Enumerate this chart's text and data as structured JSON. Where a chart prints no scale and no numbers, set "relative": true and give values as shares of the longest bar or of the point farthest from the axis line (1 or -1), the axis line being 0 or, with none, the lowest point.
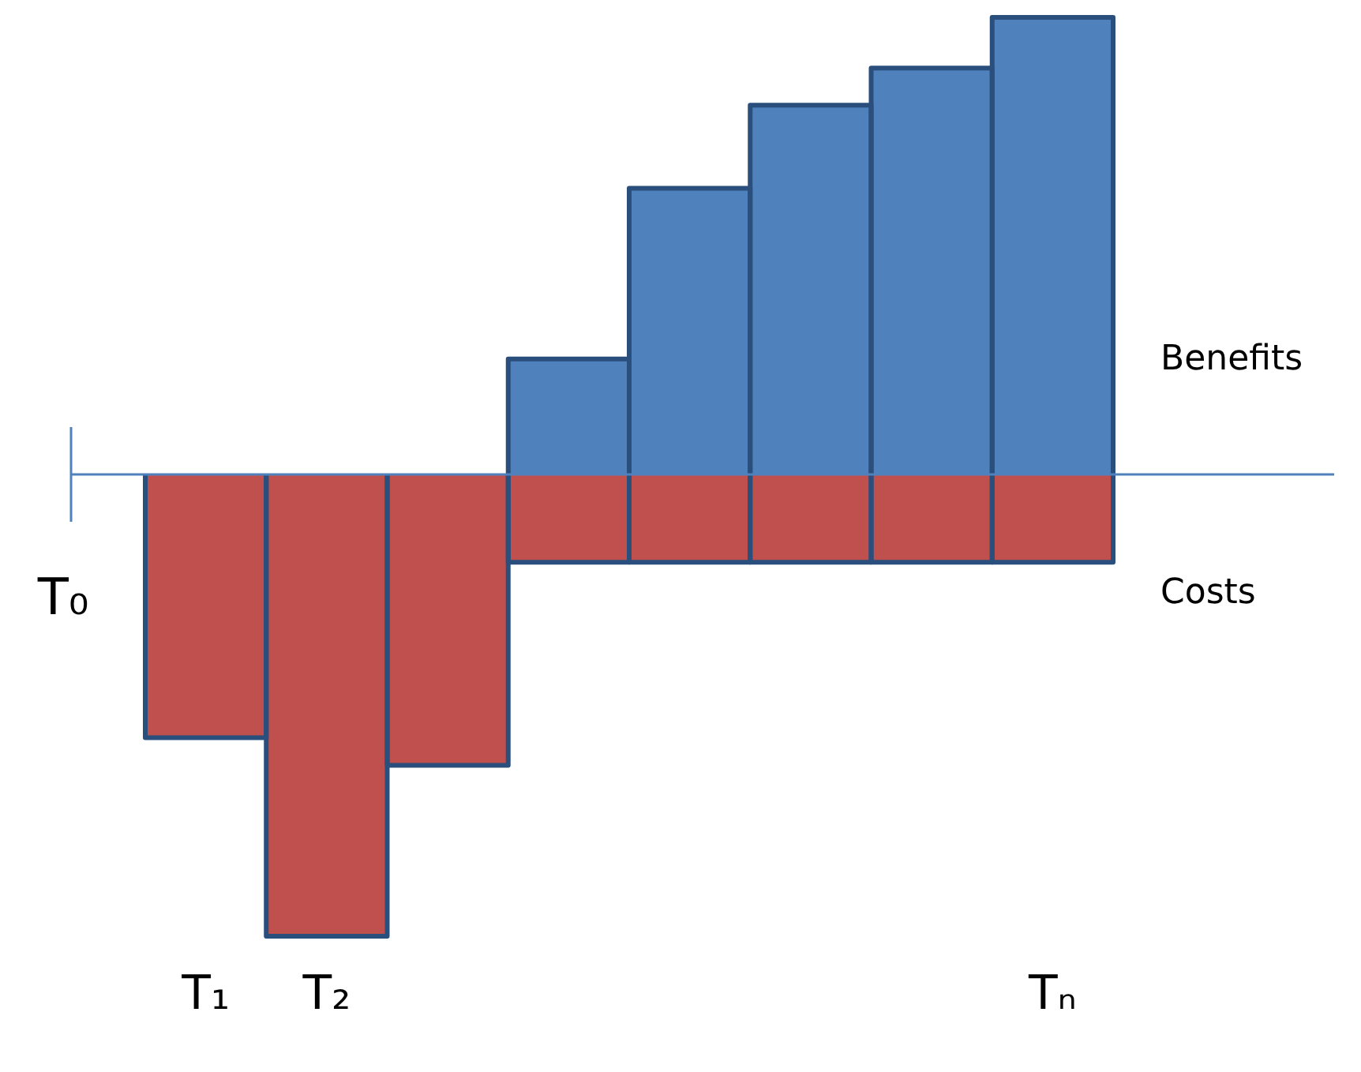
{
  "chart_data": {
    "type": "bar",
    "relative": true,
    "stacked": true,
    "legend": false,
    "categories": [
      "T₁",
      "T₂",
      null,
      null,
      null,
      null,
      null,
      "Tₙ"
    ],
    "annotations": [
      "T₀"
    ],
    "ref_lines": [
      {
        "axis": "y",
        "value": 0,
        "color": "#4f81bd"
      }
    ],
    "series": [
      {
        "name": "Costs",
        "color": "#c0504d",
        "values": [
          -0.57,
          -1,
          -0.63,
          -0.19,
          -0.19,
          -0.19,
          -0.19,
          -0.19
        ]
      },
      {
        "name": "Benefits",
        "color": "#4f81bd",
        "values": [
          null,
          null,
          null,
          0.25,
          0.62,
          0.8,
          0.88,
          0.99
        ]
      }
    ]
  }
}
